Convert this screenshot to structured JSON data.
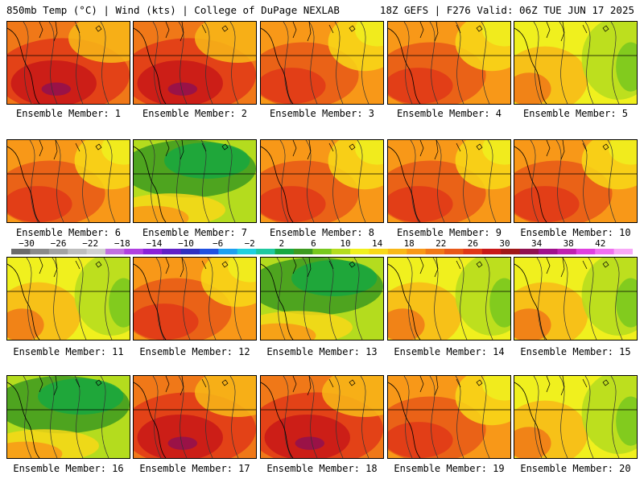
{
  "header": {
    "left": "850mb Temp (°C) | Wind (kts) | College of DuPage NEXLAB",
    "right": "18Z GEFS | F276 Valid: 06Z TUE JUN 17 2025"
  },
  "members": [
    {
      "label": "Ensemble Member: 1",
      "theme": "hot"
    },
    {
      "label": "Ensemble Member: 2",
      "theme": "hot"
    },
    {
      "label": "Ensemble Member: 3",
      "theme": "warm"
    },
    {
      "label": "Ensemble Member: 4",
      "theme": "warm"
    },
    {
      "label": "Ensemble Member: 5",
      "theme": "mild"
    },
    {
      "label": "Ensemble Member: 6",
      "theme": "warm"
    },
    {
      "label": "Ensemble Member: 7",
      "theme": "cool"
    },
    {
      "label": "Ensemble Member: 8",
      "theme": "warm"
    },
    {
      "label": "Ensemble Member: 9",
      "theme": "warm"
    },
    {
      "label": "Ensemble Member: 10",
      "theme": "warm"
    },
    {
      "label": "Ensemble Member: 11",
      "theme": "mild"
    },
    {
      "label": "Ensemble Member: 12",
      "theme": "warm"
    },
    {
      "label": "Ensemble Member: 13",
      "theme": "cool"
    },
    {
      "label": "Ensemble Member: 14",
      "theme": "mild"
    },
    {
      "label": "Ensemble Member: 15",
      "theme": "mild"
    },
    {
      "label": "Ensemble Member: 16",
      "theme": "cool"
    },
    {
      "label": "Ensemble Member: 17",
      "theme": "hot"
    },
    {
      "label": "Ensemble Member: 18",
      "theme": "hot"
    },
    {
      "label": "Ensemble Member: 19",
      "theme": "warm"
    },
    {
      "label": "Ensemble Member: 20",
      "theme": "mild"
    }
  ],
  "colorbar": {
    "tick_labels": [
      "−30",
      "−26",
      "−22",
      "−18",
      "−14",
      "−10",
      "−6",
      "−2",
      "2",
      "6",
      "10",
      "14",
      "18",
      "22",
      "26",
      "30",
      "34",
      "38",
      "42"
    ],
    "colors": [
      "#6b6b6b",
      "#8a8a8a",
      "#a2a2a2",
      "#bdbdbd",
      "#d0d0d0",
      "#c070e0",
      "#b040e0",
      "#8a20d8",
      "#6020c8",
      "#3030c0",
      "#2050e0",
      "#1ea0f0",
      "#20d0e0",
      "#20c8a0",
      "#18a840",
      "#3c9a20",
      "#78c81e",
      "#b4dc1e",
      "#f0f01e",
      "#f8d818",
      "#f8b818",
      "#f89818",
      "#f07818",
      "#e85818",
      "#e03818",
      "#c81818",
      "#a01818",
      "#901050",
      "#a0108c",
      "#c020b0",
      "#e040e0",
      "#f070f0",
      "#f8a8f8"
    ],
    "min": -34,
    "step": 2
  }
}
